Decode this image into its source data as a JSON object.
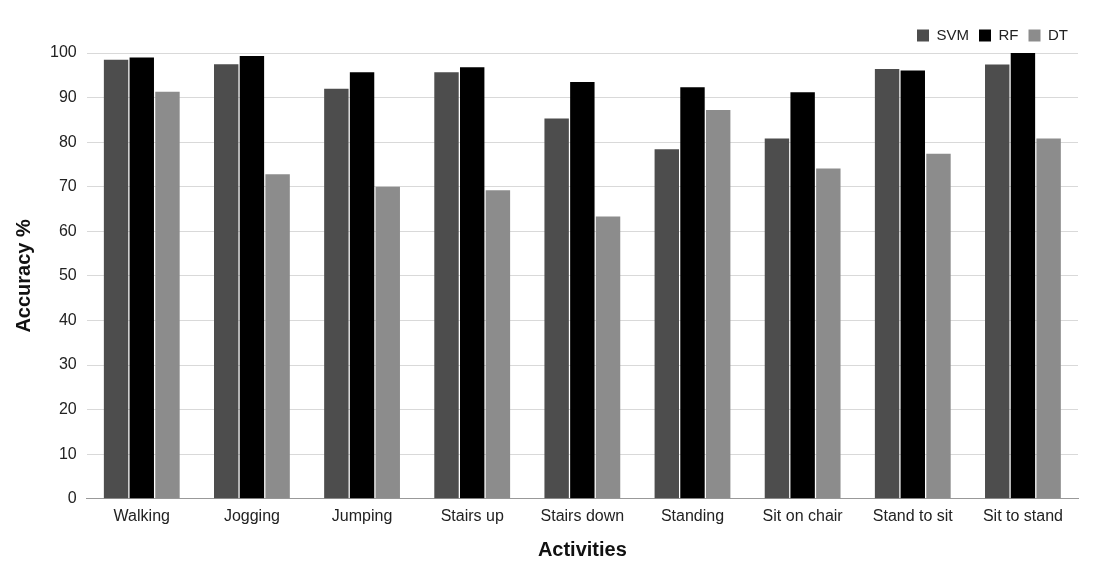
{
  "chart_data": {
    "type": "bar",
    "xlabel": "Activities",
    "ylabel": "Accuracy %",
    "categories": [
      "Walking",
      "Jogging",
      "Jumping",
      "Stairs up",
      "Stairs down",
      "Standing",
      "Sit on chair",
      "Stand to sit",
      "Sit to stand"
    ],
    "series": [
      {
        "name": "SVM",
        "color": "#4d4d4d",
        "values": [
          98.5,
          97.5,
          92,
          95.7,
          85.3,
          78.4,
          80.8,
          96.4,
          97.4
        ]
      },
      {
        "name": "RF",
        "color": "#000000",
        "values": [
          99,
          99.3,
          95.7,
          96.8,
          93.5,
          92.3,
          91.2,
          96.1,
          100
        ]
      },
      {
        "name": "DT",
        "color": "#8c8c8c",
        "values": [
          91.3,
          72.8,
          70,
          69.2,
          63.3,
          87.2,
          74.1,
          77.4,
          80.8
        ]
      }
    ],
    "ylim": [
      0,
      100
    ],
    "yticks": [
      0,
      10,
      20,
      30,
      40,
      50,
      60,
      70,
      80,
      90,
      100
    ],
    "grid": "y",
    "legend": "top right"
  }
}
